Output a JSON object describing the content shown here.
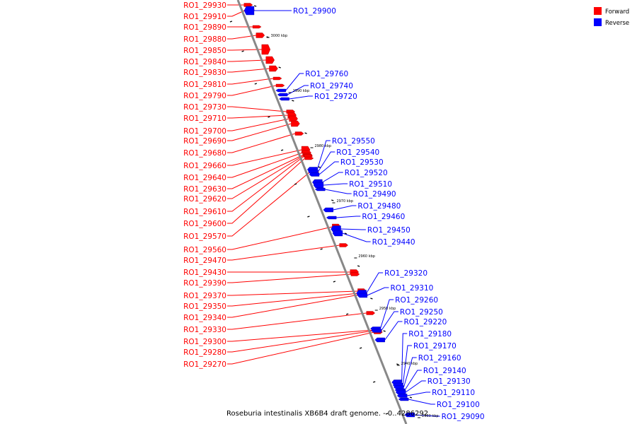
{
  "title": "Roseburia intestinalis XB6B4 draft genome. - 0..4286292",
  "legend": [
    {
      "label": "Forward",
      "color": "#ff0000"
    },
    {
      "label": "Reverse",
      "color": "#0000ff"
    }
  ],
  "colors": {
    "forward": "#ff0000",
    "reverse": "#0000ff",
    "backbone": "#888888"
  },
  "ticks": [
    "3000 kbp",
    "2990 kbp",
    "2980 kbp",
    "2970 kbp",
    "2960 kbp",
    "2950 kbp",
    "2940 kbp",
    "2930 kbp"
  ],
  "forward_genes": [
    "RO1_29930",
    "RO1_29910",
    "RO1_29890",
    "RO1_29880",
    "RO1_29850",
    "RO1_29840",
    "RO1_29830",
    "RO1_29810",
    "RO1_29790",
    "RO1_29730",
    "RO1_29710",
    "RO1_29700",
    "RO1_29690",
    "RO1_29680",
    "RO1_29660",
    "RO1_29640",
    "RO1_29630",
    "RO1_29620",
    "RO1_29610",
    "RO1_29600",
    "RO1_29570",
    "RO1_29560",
    "RO1_29470",
    "RO1_29430",
    "RO1_29390",
    "RO1_29370",
    "RO1_29350",
    "RO1_29340",
    "RO1_29330",
    "RO1_29300",
    "RO1_29280",
    "RO1_29270"
  ],
  "reverse_genes": [
    "RO1_29900",
    "RO1_29760",
    "RO1_29740",
    "RO1_29720",
    "RO1_29550",
    "RO1_29540",
    "RO1_29530",
    "RO1_29520",
    "RO1_29510",
    "RO1_29490",
    "RO1_29480",
    "RO1_29460",
    "RO1_29450",
    "RO1_29440",
    "RO1_29320",
    "RO1_29310",
    "RO1_29260",
    "RO1_29250",
    "RO1_29220",
    "RO1_29180",
    "RO1_29170",
    "RO1_29160",
    "RO1_29140",
    "RO1_29130",
    "RO1_29110",
    "RO1_29100",
    "RO1_29090"
  ]
}
